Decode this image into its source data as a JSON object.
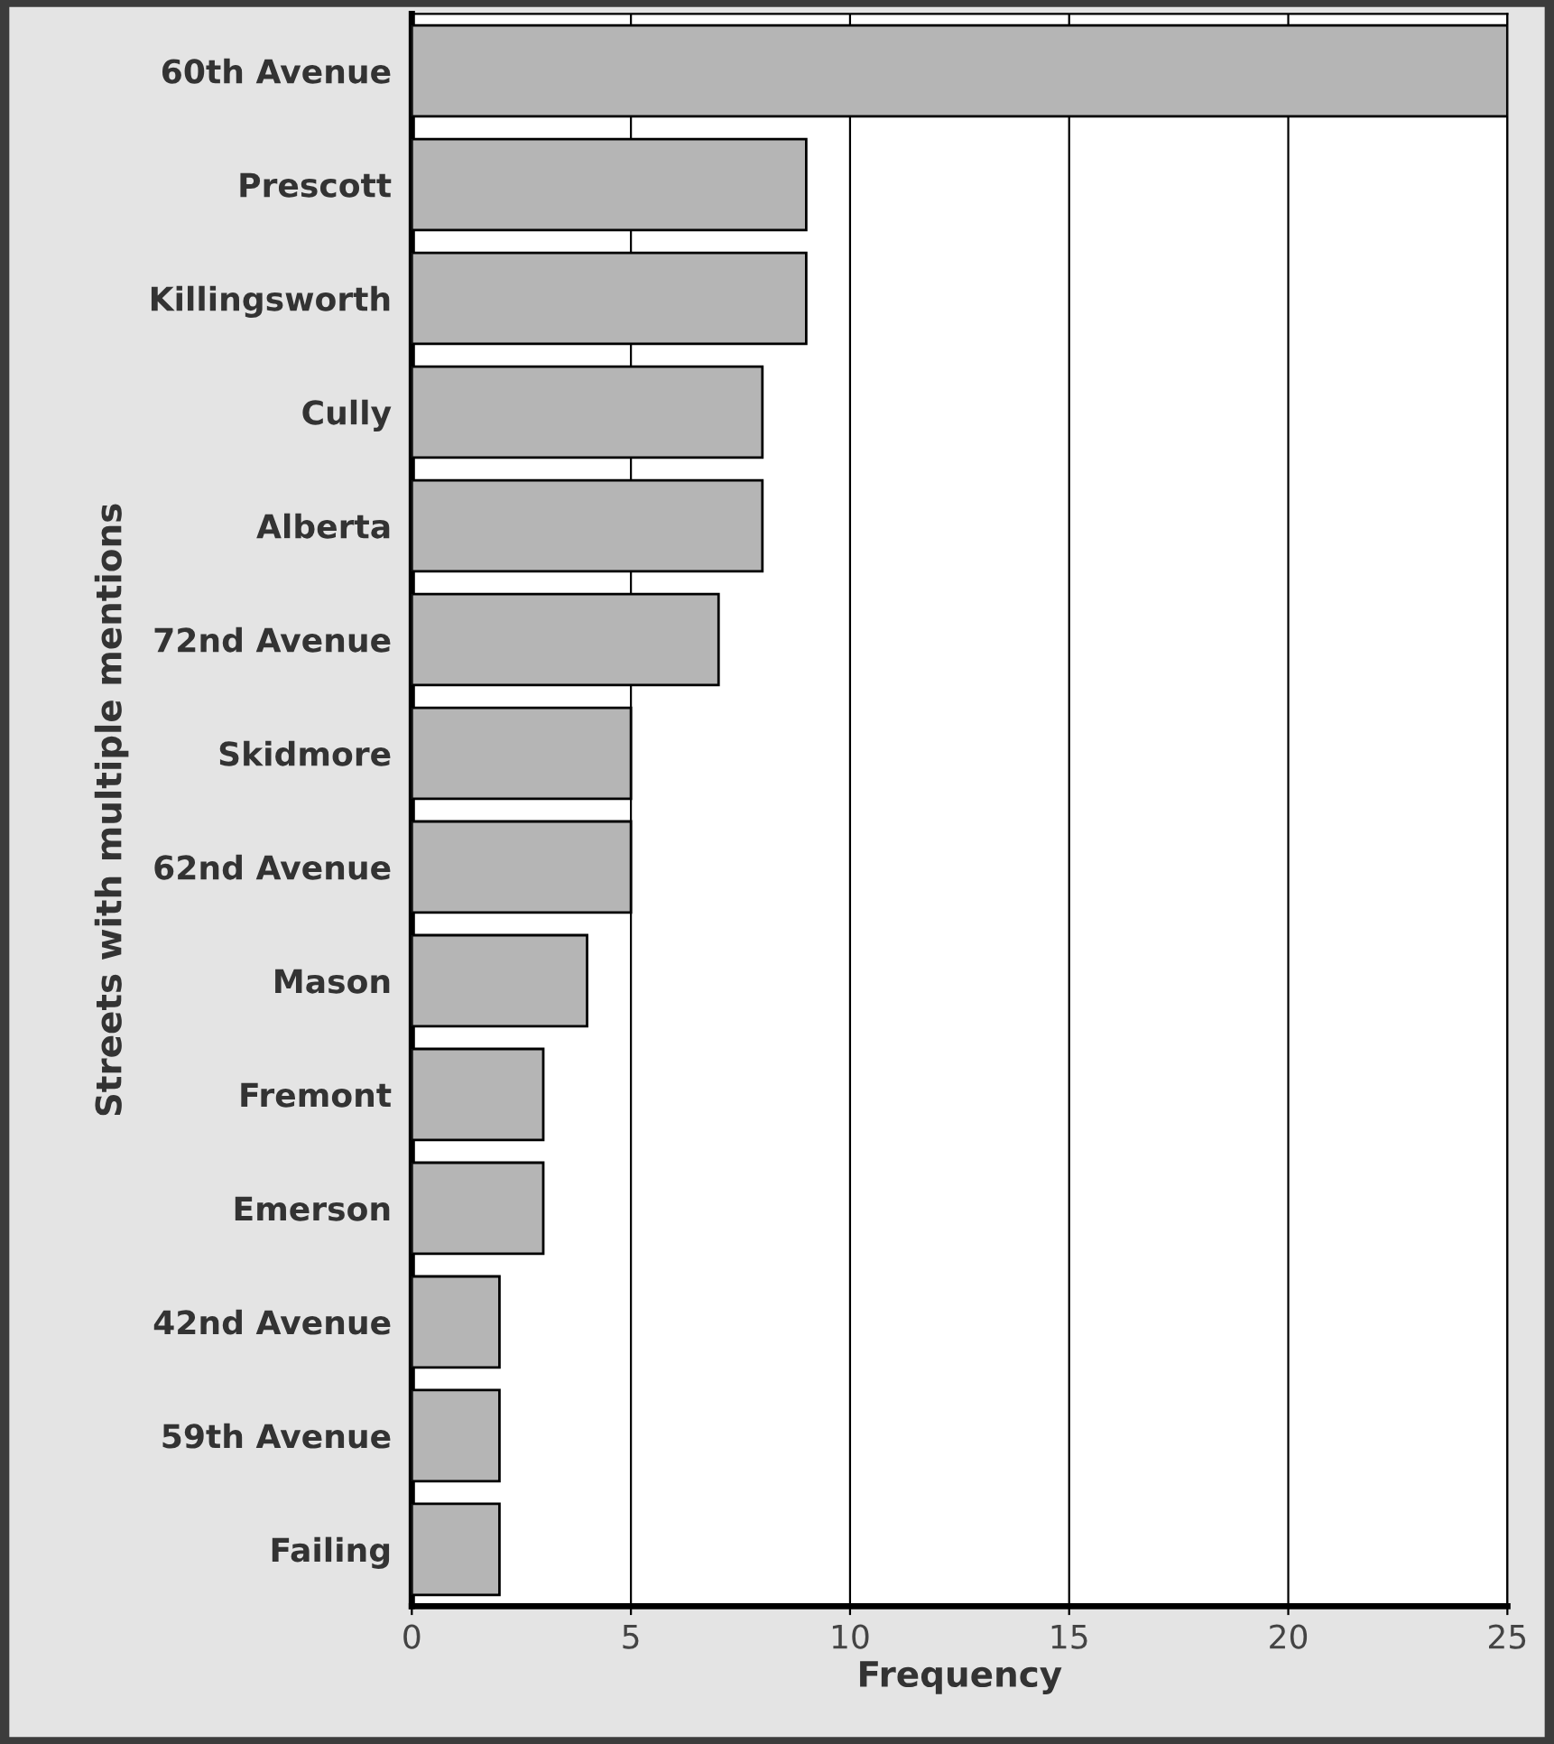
{
  "chart_data": {
    "type": "bar",
    "orientation": "horizontal",
    "xlabel": "Frequency",
    "ylabel": "Streets with multiple mentions",
    "categories": [
      "60th Avenue",
      "Prescott",
      "Killingsworth",
      "Cully",
      "Alberta",
      "72nd Avenue",
      "Skidmore",
      "62nd Avenue",
      "Mason",
      "Fremont",
      "Emerson",
      "42nd Avenue",
      "59th Avenue",
      "Failing"
    ],
    "values": [
      25,
      9,
      9,
      8,
      8,
      7,
      5,
      5,
      4,
      3,
      3,
      2,
      2,
      2
    ],
    "color": "#b5b5b5",
    "xlim": [
      0,
      25
    ],
    "xticks": [
      0,
      5,
      10,
      15,
      20,
      25
    ],
    "grid": "x",
    "legend": false
  }
}
